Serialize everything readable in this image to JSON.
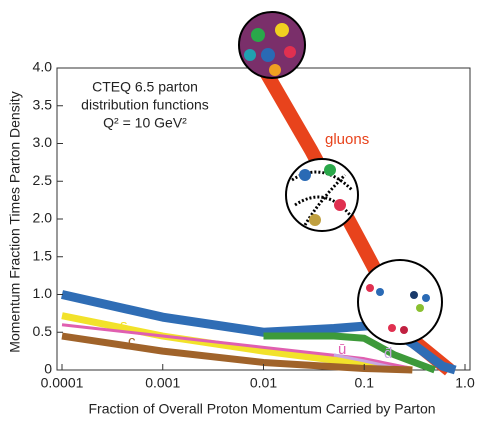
{
  "chart_data": {
    "type": "line",
    "annotations": [
      "CTEQ 6.5 parton",
      "distribution functions",
      "Q² = 10 GeV²"
    ],
    "x_label": "Fraction of Overall Proton Momentum Carried by Parton",
    "y_label": "Momentum Fraction Times Parton Density",
    "log_x": true,
    "xlim": [
      0.0001,
      1
    ],
    "xticks": [
      0.0001,
      0.001,
      0.01,
      0.1,
      {
        "value": 1,
        "label": "1.0"
      }
    ],
    "ylim": [
      0,
      4
    ],
    "yticks": [
      0,
      0.5,
      {
        "value": 1,
        "label": "1.0"
      },
      1.5,
      {
        "value": 2,
        "label": "2.0"
      },
      2.5,
      {
        "value": 3,
        "label": "3.0"
      },
      3.5,
      {
        "value": 4,
        "label": "4.0"
      }
    ],
    "series": [
      {
        "name": "gluons",
        "color": "#e8431c",
        "x": [
          0.01,
          0.03,
          0.1,
          0.3,
          0.7
        ],
        "values": [
          4.0,
          2.9,
          1.6,
          0.4,
          0
        ]
      },
      {
        "color": "#2f6db5",
        "x": [
          0.0001,
          0.001,
          0.01,
          0.05,
          0.15,
          0.3,
          0.6,
          0.8
        ],
        "values": [
          1.0,
          0.7,
          0.5,
          0.55,
          0.6,
          0.35,
          0.05,
          0
        ]
      },
      {
        "color": "#3d9a3a",
        "x": [
          0.01,
          0.05,
          0.1,
          0.2,
          0.5
        ],
        "values": [
          0.45,
          0.45,
          0.42,
          0.2,
          0
        ]
      },
      {
        "name": "s",
        "color": "#f2e22a",
        "x": [
          0.0001,
          0.001,
          0.01,
          0.1,
          0.3
        ],
        "values": [
          0.72,
          0.45,
          0.25,
          0.08,
          0
        ]
      },
      {
        "name": "ū",
        "color": "#e05fb0",
        "x": [
          0.0001,
          0.001,
          0.01,
          0.1,
          0.3
        ],
        "values": [
          0.6,
          0.45,
          0.3,
          0.15,
          0.02
        ]
      },
      {
        "name": "d̄",
        "color": "#c7a7e0",
        "x": [
          0.05,
          0.1,
          0.2
        ],
        "values": [
          0.2,
          0.12,
          0.03
        ]
      },
      {
        "name": "c",
        "color": "#a0632a",
        "x": [
          0.0001,
          0.001,
          0.01,
          0.1,
          0.3
        ],
        "values": [
          0.45,
          0.25,
          0.1,
          0.02,
          0
        ]
      }
    ]
  }
}
